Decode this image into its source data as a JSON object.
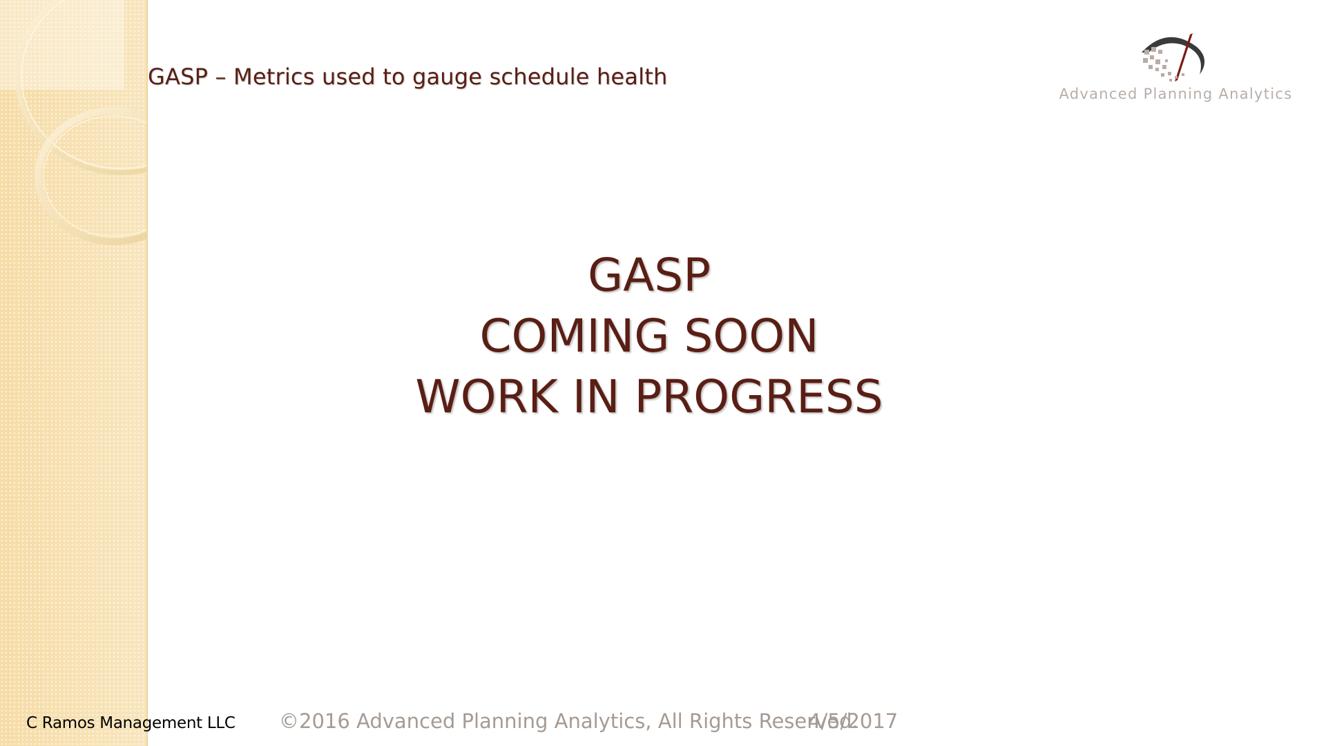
{
  "slide": {
    "header_title": "GASP – Metrics used to gauge schedule health",
    "main_lines": [
      "GASP",
      "COMING SOON",
      "WORK IN PROGRESS"
    ],
    "logo": {
      "icon": "advanced-planning-analytics-logo-icon",
      "text": "Advanced Planning Analytics"
    },
    "footer": {
      "company": "C Ramos Management LLC",
      "copyright": "©2016 Advanced Planning Analytics, All Rights Reserved.",
      "date": "4/5/2017"
    }
  },
  "colors": {
    "title_text": "#5a1e14",
    "footer_text": "#a59b93",
    "side_panel": "#f7e1b0",
    "logo_text": "#b7aea8"
  }
}
